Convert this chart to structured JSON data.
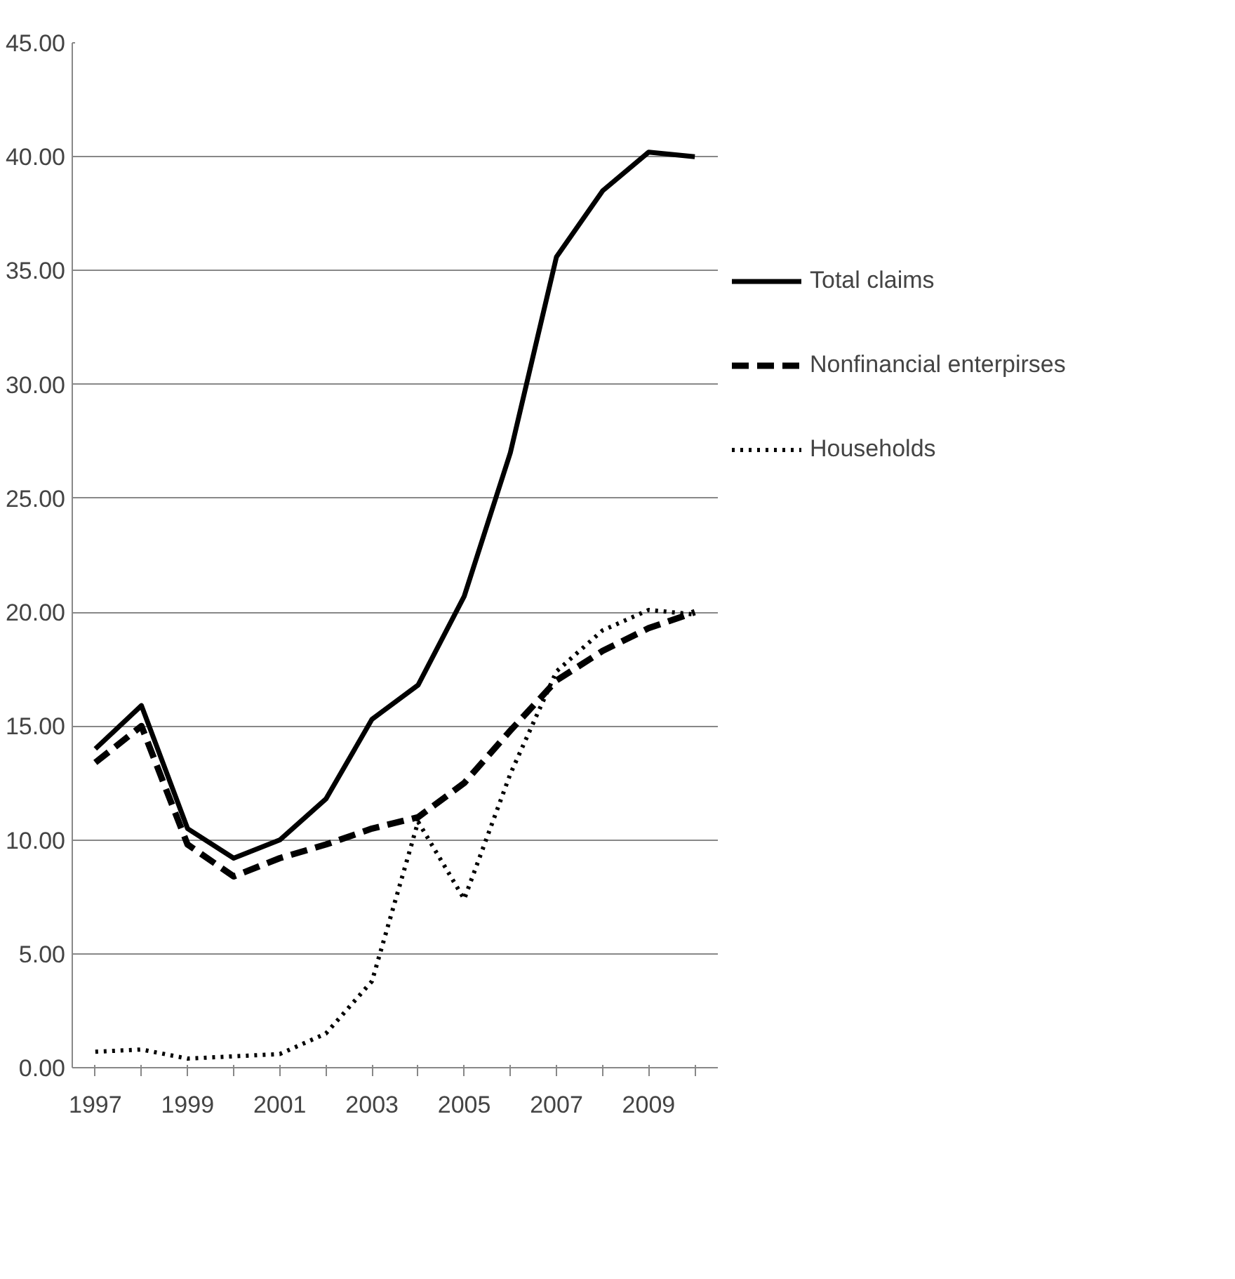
{
  "chart_data": {
    "type": "line",
    "categories": [
      "1997",
      null,
      "1999",
      null,
      "2001",
      null,
      "2003",
      null,
      "2005",
      null,
      "2007",
      null,
      "2009",
      null
    ],
    "ylim": [
      0,
      45
    ],
    "yticks": [
      {
        "value": 0,
        "label": "0.00"
      },
      {
        "value": 5,
        "label": "5.00"
      },
      {
        "value": 10,
        "label": "10.00"
      },
      {
        "value": 15,
        "label": "15.00"
      },
      {
        "value": 20,
        "label": "20.00"
      },
      {
        "value": 25,
        "label": "25.00"
      },
      {
        "value": 30,
        "label": "30.00"
      },
      {
        "value": 35,
        "label": "35.00"
      },
      {
        "value": 40,
        "label": "40.00"
      },
      {
        "value": 45,
        "label": "45.00"
      }
    ],
    "grid": "y",
    "legend": "right",
    "marker": "none",
    "series": [
      {
        "name": "Total claims",
        "color": "#000000",
        "line_style": "solid",
        "values": [
          14.0,
          15.9,
          10.5,
          9.2,
          10.0,
          11.8,
          15.3,
          16.8,
          20.7,
          27.0,
          35.6,
          38.5,
          40.2,
          40.0
        ]
      },
      {
        "name": "Nonfinancial enterpirses",
        "color": "#000000",
        "line_style": "dashed",
        "values": [
          13.4,
          15.0,
          9.8,
          8.4,
          9.2,
          9.8,
          10.5,
          11.0,
          12.5,
          14.8,
          17.0,
          18.3,
          19.3,
          20.0
        ]
      },
      {
        "name": "Households",
        "color": "#000000",
        "line_style": "dotted",
        "values": [
          0.7,
          0.8,
          0.4,
          0.5,
          0.6,
          1.5,
          3.8,
          10.8,
          7.4,
          12.9,
          17.4,
          19.2,
          20.1,
          19.9
        ]
      }
    ]
  }
}
